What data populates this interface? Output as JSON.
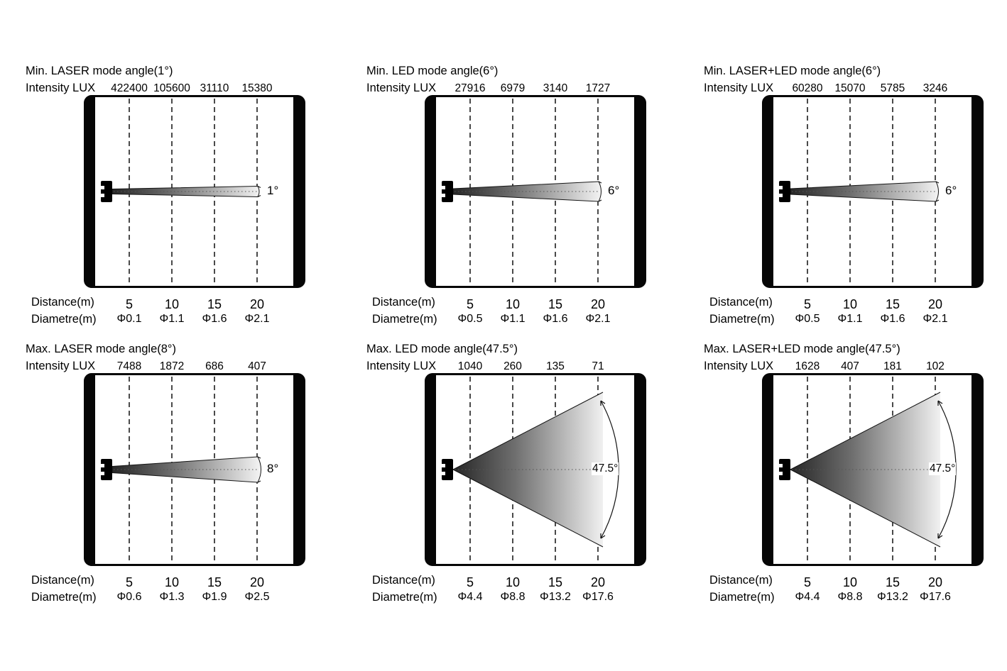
{
  "page": {
    "background": "#ffffff",
    "ink": "#000000",
    "gridline_color": "#4a4a4a"
  },
  "panels": [
    {
      "title": "Min. LASER mode angle(1°)",
      "intensity_label": "Intensity LUX",
      "intensity_values": [
        "422400",
        "105600",
        "31110",
        "15380"
      ],
      "angle_label": "1°",
      "angle_deg": 1,
      "beam_mode": "narrow",
      "distance_label": "Distance(m)",
      "distances": [
        "5",
        "10",
        "15",
        "20"
      ],
      "diametre_label": "Diametre(m)",
      "diametres": [
        "Φ0.1",
        "Φ1.1",
        "Φ1.6",
        "Φ2.1"
      ]
    },
    {
      "title": "Min. LED mode angle(6°)",
      "intensity_label": "Intensity LUX",
      "intensity_values": [
        "27916",
        "6979",
        "3140",
        "1727"
      ],
      "angle_label": "6°",
      "angle_deg": 6,
      "beam_mode": "narrow",
      "distance_label": "Distance(m)",
      "distances": [
        "5",
        "10",
        "15",
        "20"
      ],
      "diametre_label": "Diametre(m)",
      "diametres": [
        "Φ0.5",
        "Φ1.1",
        "Φ1.6",
        "Φ2.1"
      ]
    },
    {
      "title": "Min. LASER+LED mode angle(6°)",
      "intensity_label": "Intensity LUX",
      "intensity_values": [
        "60280",
        "15070",
        "5785",
        "3246"
      ],
      "angle_label": "6°",
      "angle_deg": 6,
      "beam_mode": "narrow",
      "distance_label": "Distance(m)",
      "distances": [
        "5",
        "10",
        "15",
        "20"
      ],
      "diametre_label": "Diametre(m)",
      "diametres": [
        "Φ0.5",
        "Φ1.1",
        "Φ1.6",
        "Φ2.1"
      ]
    },
    {
      "title": "Max. LASER mode angle(8°)",
      "intensity_label": "Intensity LUX",
      "intensity_values": [
        "7488",
        "1872",
        "686",
        "407"
      ],
      "angle_label": "8°",
      "angle_deg": 8,
      "beam_mode": "narrow",
      "distance_label": "Distance(m)",
      "distances": [
        "5",
        "10",
        "15",
        "20"
      ],
      "diametre_label": "Diametre(m)",
      "diametres": [
        "Φ0.6",
        "Φ1.3",
        "Φ1.9",
        "Φ2.5"
      ]
    },
    {
      "title": "Max. LED mode angle(47.5°)",
      "intensity_label": "Intensity LUX",
      "intensity_values": [
        "1040",
        "260",
        "135",
        "71"
      ],
      "angle_label": "47.5°",
      "angle_deg": 47.5,
      "beam_mode": "wide",
      "distance_label": "Distance(m)",
      "distances": [
        "5",
        "10",
        "15",
        "20"
      ],
      "diametre_label": "Diametre(m)",
      "diametres": [
        "Φ4.4",
        "Φ8.8",
        "Φ13.2",
        "Φ17.6"
      ]
    },
    {
      "title": "Max. LASER+LED mode angle(47.5°)",
      "intensity_label": "Intensity LUX",
      "intensity_values": [
        "1628",
        "407",
        "181",
        "102"
      ],
      "angle_label": "47.5°",
      "angle_deg": 47.5,
      "beam_mode": "wide",
      "distance_label": "Distance(m)",
      "distances": [
        "5",
        "10",
        "15",
        "20"
      ],
      "diametre_label": "Diametre(m)",
      "diametres": [
        "Φ4.4",
        "Φ8.8",
        "Φ13.2",
        "Φ17.6"
      ]
    }
  ]
}
